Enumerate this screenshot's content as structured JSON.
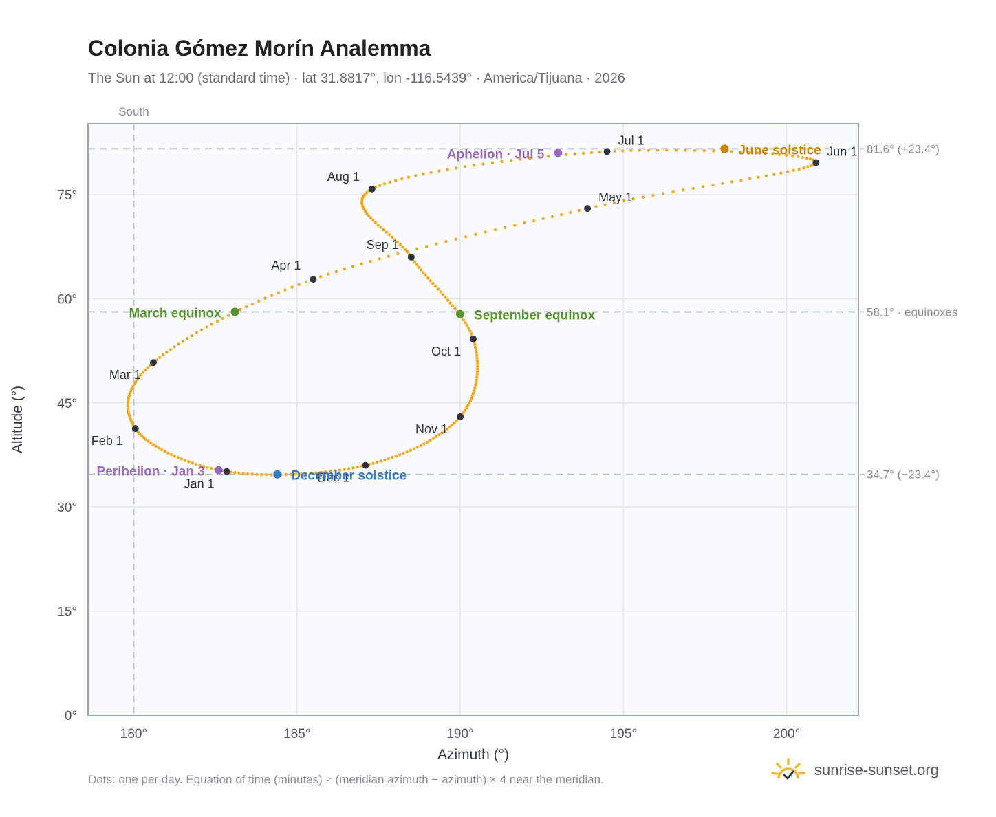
{
  "header": {
    "title": "Colonia Gómez Morín Analemma",
    "subtitle": "The Sun at 12:00 (standard time) · lat 31.8817°, lon -116.5439° · America/Tijuana · 2026"
  },
  "footer": {
    "note": "Dots: one per day. Equation of time (minutes) ≈ (meridian azimuth − azimuth) × 4 near the meridian.",
    "brand": "sunrise-sunset.org"
  },
  "chart_data": {
    "type": "scatter",
    "xlabel": "Azimuth (°)",
    "ylabel": "Altitude (°)",
    "xlim": [
      178.6,
      202.2
    ],
    "ylim": [
      0,
      85.2
    ],
    "x_ticks": [
      180,
      185,
      190,
      195,
      200
    ],
    "x_tick_labels": [
      "180°",
      "185°",
      "190°",
      "195°",
      "200°"
    ],
    "y_ticks": [
      0,
      15,
      30,
      45,
      60,
      75
    ],
    "y_tick_labels": [
      "0°",
      "15°",
      "30°",
      "45°",
      "60°",
      "75°"
    ],
    "grid": true,
    "south_line": {
      "azimuth": 180,
      "label": "South"
    },
    "reference_lines": [
      {
        "altitude": 81.6,
        "label": "81.6° (+23.4°)"
      },
      {
        "altitude": 58.1,
        "label": "58.1° · equinoxes"
      },
      {
        "altitude": 34.7,
        "label": "34.7° (−23.4°)"
      }
    ],
    "month_points": [
      {
        "label": "Jan 1",
        "azimuth": 182.85,
        "altitude": 35.1
      },
      {
        "label": "Feb 1",
        "azimuth": 180.05,
        "altitude": 41.3
      },
      {
        "label": "Mar 1",
        "azimuth": 180.6,
        "altitude": 50.8
      },
      {
        "label": "Apr 1",
        "azimuth": 185.5,
        "altitude": 62.8
      },
      {
        "label": "May 1",
        "azimuth": 193.9,
        "altitude": 73.0
      },
      {
        "label": "Jun 1",
        "azimuth": 200.9,
        "altitude": 79.6
      },
      {
        "label": "Jul 1",
        "azimuth": 194.5,
        "altitude": 81.2
      },
      {
        "label": "Aug 1",
        "azimuth": 187.3,
        "altitude": 75.8
      },
      {
        "label": "Sep 1",
        "azimuth": 188.5,
        "altitude": 66.0
      },
      {
        "label": "Oct 1",
        "azimuth": 190.4,
        "altitude": 54.2
      },
      {
        "label": "Nov 1",
        "azimuth": 190.0,
        "altitude": 43.0
      },
      {
        "label": "Dec 1",
        "azimuth": 187.1,
        "altitude": 36.0
      }
    ],
    "events": [
      {
        "label": "March equinox",
        "azimuth": 183.1,
        "altitude": 58.1,
        "color": "#5a9431"
      },
      {
        "label": "June solstice",
        "azimuth": 198.1,
        "altitude": 81.6,
        "color": "#c8860d"
      },
      {
        "label": "September equinox",
        "azimuth": 190.0,
        "altitude": 57.8,
        "color": "#5a9431"
      },
      {
        "label": "December solstice",
        "azimuth": 184.4,
        "altitude": 34.7,
        "color": "#3a7abf"
      },
      {
        "label": "Perihelion · Jan 3",
        "azimuth": 182.6,
        "altitude": 35.3,
        "color": "#9b6bbd"
      },
      {
        "label": "Aphelion · Jul 5",
        "azimuth": 193.0,
        "altitude": 81.0,
        "color": "#9b6bbd"
      }
    ]
  },
  "colors": {
    "curve": "#f5a623",
    "month_dot": "#2f3640",
    "grid": "#e3e8ee",
    "plot_background": "#f9fbfd",
    "axis_frame": "#9aa5b4",
    "reference_line": "#b8c3cf"
  }
}
